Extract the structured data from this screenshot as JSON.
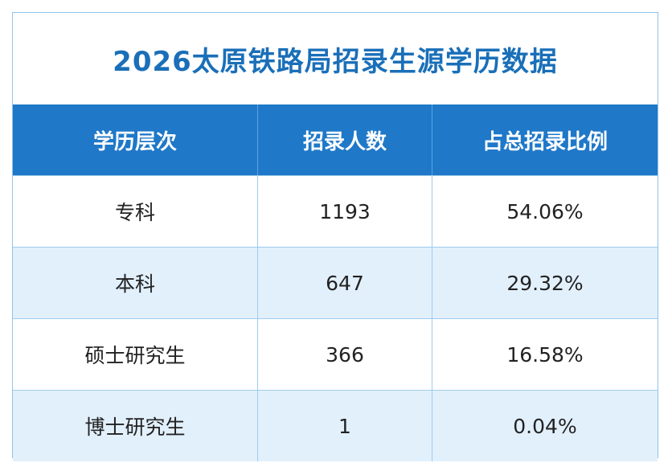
{
  "header": {
    "title": "2026太原铁路局招录生源学历数据"
  },
  "table": {
    "columns": [
      "学历层次",
      "招录人数",
      "占总招录比例"
    ],
    "rows": [
      [
        "专科",
        "1193",
        "54.06%"
      ],
      [
        "本科",
        "647",
        "29.32%"
      ],
      [
        "硕士研究生",
        "366",
        "16.58%"
      ],
      [
        "博士研究生",
        "1",
        "0.04%"
      ]
    ]
  }
}
